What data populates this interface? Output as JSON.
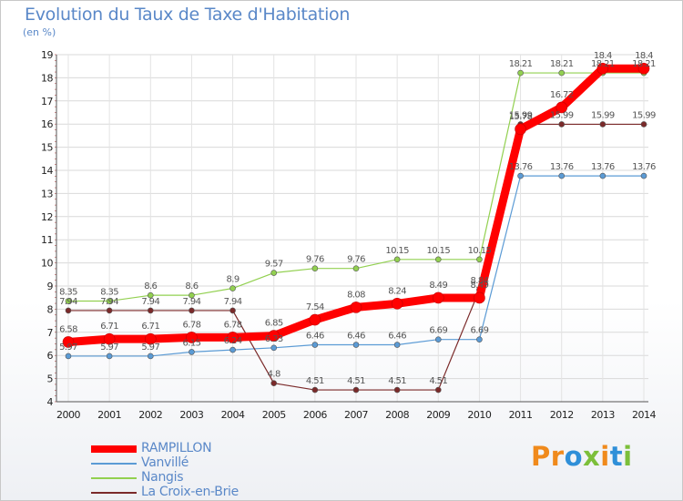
{
  "title": "Evolution du Taux de Taxe d'Habitation",
  "subtitle": "(en %)",
  "logo": {
    "text": "Proxiti",
    "letters": [
      "P",
      "r",
      "o",
      "x",
      "i",
      "t",
      "i"
    ],
    "colors": [
      "#f08a1c",
      "#f08a1c",
      "#2f8fd8",
      "#7cbf3a",
      "#f08a1c",
      "#2f8fd8",
      "#7cbf3a"
    ]
  },
  "chart_data": {
    "type": "line",
    "title": "Evolution du Taux de Taxe d'Habitation",
    "ylabel": "(en %)",
    "xlabel": "",
    "x": [
      "2000",
      "2001",
      "2002",
      "2003",
      "2004",
      "2005",
      "2006",
      "2007",
      "2008",
      "2009",
      "2010",
      "2011",
      "2012",
      "2013",
      "2014"
    ],
    "ylim": [
      4,
      19
    ],
    "yticks": [
      "4",
      "5",
      "6",
      "7",
      "8",
      "9",
      "10",
      "11",
      "12",
      "13",
      "14",
      "15",
      "16",
      "17",
      "18",
      "19"
    ],
    "grid": true,
    "legend_position": "bottom-left",
    "series": [
      {
        "name": "Vanvillé",
        "color": "#5b9bd5",
        "width": 1.2,
        "marker": 3,
        "values": [
          5.97,
          5.97,
          5.97,
          6.15,
          6.24,
          6.33,
          6.46,
          6.46,
          6.46,
          6.69,
          6.69,
          13.76,
          13.76,
          13.76,
          13.76
        ],
        "labels": [
          "5.97",
          "5.97",
          "5.97",
          "6.15",
          "6.24",
          "6.33",
          "6.46",
          "6.46",
          "6.46",
          "6.69",
          "6.69",
          "13.76",
          "13.76",
          "13.76",
          "13.76"
        ]
      },
      {
        "name": "Nangis",
        "color": "#92d050",
        "width": 1.2,
        "marker": 3,
        "values": [
          8.35,
          8.35,
          8.6,
          8.6,
          8.9,
          9.57,
          9.76,
          9.76,
          10.15,
          10.15,
          10.15,
          18.21,
          18.21,
          18.21,
          18.21
        ],
        "labels": [
          "8.35",
          "8.35",
          "8.6",
          "8.6",
          "8.9",
          "9.57",
          "9.76",
          "9.76",
          "10.15",
          "10.15",
          "10.15",
          "18.21",
          "18.21",
          "18.21",
          "18.21"
        ]
      },
      {
        "name": "La Croix-en-Brie",
        "color": "#7b2a2a",
        "width": 1.2,
        "marker": 3,
        "values": [
          7.94,
          7.94,
          7.94,
          7.94,
          7.94,
          4.8,
          4.51,
          4.51,
          4.51,
          4.51,
          8.84,
          15.99,
          15.99,
          15.99,
          15.99
        ],
        "labels": [
          "7.94",
          "7.94",
          "7.94",
          "7.94",
          "7.94",
          "4.8",
          "4.51",
          "4.51",
          "4.51",
          "4.51",
          "8.84",
          "15.99",
          "15.99",
          "15.99",
          "15.99"
        ]
      },
      {
        "name": "RAMPILLON",
        "color": "#ff0000",
        "width": 9,
        "marker": 6,
        "values": [
          6.58,
          6.71,
          6.71,
          6.78,
          6.78,
          6.85,
          7.54,
          8.08,
          8.24,
          8.49,
          8.49,
          15.78,
          16.72,
          18.4,
          18.4
        ],
        "labels": [
          "6.58",
          "6.71",
          "6.71",
          "6.78",
          "6.78",
          "6.85",
          "7.54",
          "8.08",
          "8.24",
          "8.49",
          "8.49",
          "15.78",
          "16.72",
          "18.4",
          "18.4"
        ]
      }
    ]
  },
  "legend": [
    {
      "label": "RAMPILLON",
      "color": "#ff0000",
      "thickness": 8
    },
    {
      "label": "Vanvillé",
      "color": "#5b9bd5",
      "thickness": 2
    },
    {
      "label": "Nangis",
      "color": "#92d050",
      "thickness": 2
    },
    {
      "label": "La Croix-en-Brie",
      "color": "#7b2a2a",
      "thickness": 2
    }
  ]
}
